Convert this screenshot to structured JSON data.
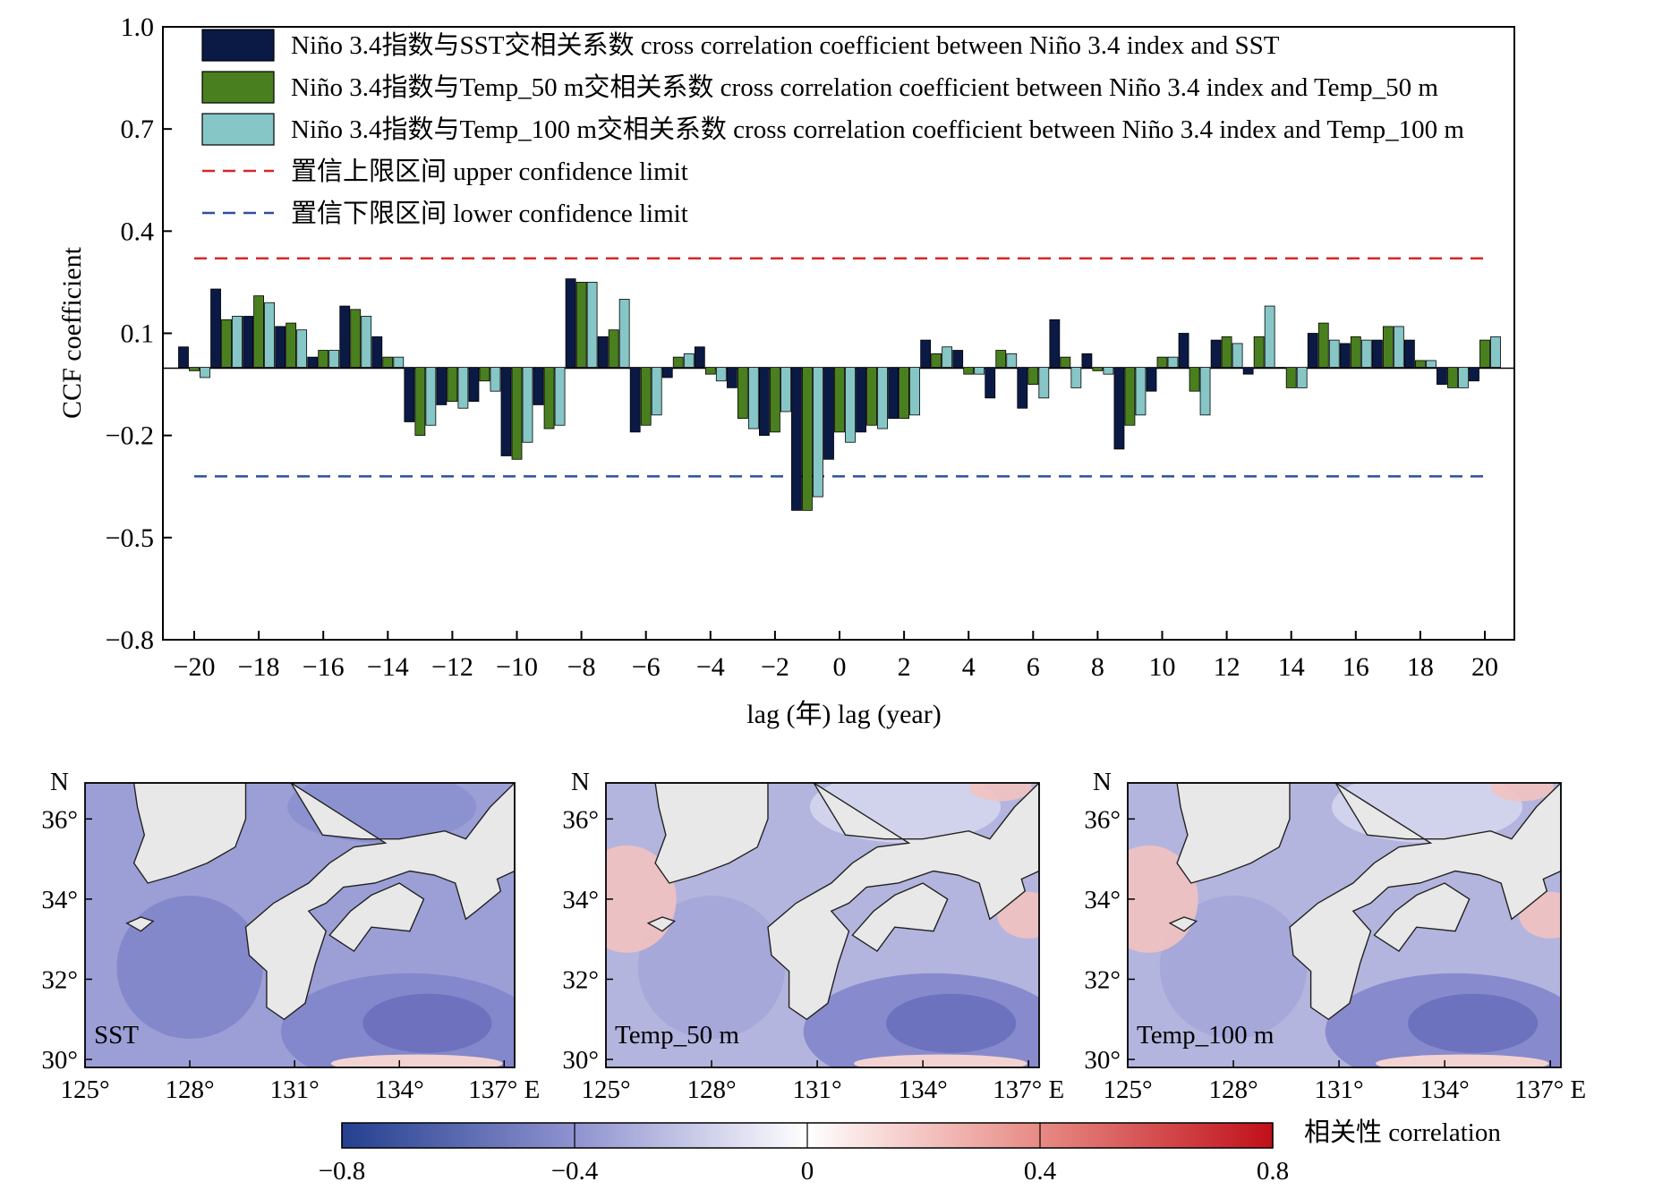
{
  "chart_data": [
    {
      "type": "bar",
      "ylabel": "CCF coefficient",
      "xlabel": "lag (年) lag (year)",
      "ylim": [
        -0.8,
        1.0
      ],
      "yticks": [
        1.0,
        0.7,
        0.4,
        0.1,
        -0.2,
        -0.5,
        -0.8
      ],
      "ytick_labels": [
        "1.0",
        "0.7",
        "0.4",
        "0.1",
        "−0.2",
        "−0.5",
        "−0.8"
      ],
      "xlim": [
        -20,
        20
      ],
      "xticks": [
        -20,
        -18,
        -16,
        -14,
        -12,
        -10,
        -8,
        -6,
        -4,
        -2,
        0,
        2,
        4,
        6,
        8,
        10,
        12,
        14,
        16,
        18,
        20
      ],
      "xtick_labels": [
        "−20",
        "−18",
        "−16",
        "−14",
        "−12",
        "−10",
        "−8",
        "−6",
        "−4",
        "−2",
        "0",
        "2",
        "4",
        "6",
        "8",
        "10",
        "12",
        "14",
        "16",
        "18",
        "20"
      ],
      "lags": [
        -20,
        -19,
        -18,
        -17,
        -16,
        -15,
        -14,
        -13,
        -12,
        -11,
        -10,
        -9,
        -8,
        -7,
        -6,
        -5,
        -4,
        -3,
        -2,
        -1,
        0,
        1,
        2,
        3,
        4,
        5,
        6,
        7,
        8,
        9,
        10,
        11,
        12,
        13,
        14,
        15,
        16,
        17,
        18,
        19,
        20
      ],
      "legend_position": "top",
      "series": [
        {
          "name": "Niño 3.4指数与SST交相关系数 cross correlation coefficient between Niño 3.4 index and SST",
          "color": "#0b1a45",
          "values": [
            0.06,
            0.23,
            0.15,
            0.12,
            0.03,
            0.18,
            0.09,
            -0.16,
            -0.11,
            -0.1,
            -0.26,
            -0.11,
            0.26,
            0.09,
            -0.19,
            -0.03,
            0.06,
            -0.06,
            -0.2,
            -0.42,
            -0.27,
            -0.19,
            -0.15,
            0.08,
            0.05,
            -0.09,
            -0.12,
            0.14,
            0.04,
            -0.24,
            -0.07,
            0.1,
            0.08,
            -0.02,
            0.0,
            0.1,
            0.07,
            0.08,
            0.08,
            -0.05,
            -0.04
          ]
        },
        {
          "name": "Niño 3.4指数与Temp_50 m交相关系数 cross correlation coefficient between Niño 3.4 index and Temp_50 m",
          "color": "#4a7f1f",
          "values": [
            -0.01,
            0.14,
            0.21,
            0.13,
            0.05,
            0.17,
            0.03,
            -0.2,
            -0.1,
            -0.04,
            -0.27,
            -0.18,
            0.25,
            0.11,
            -0.17,
            0.03,
            -0.02,
            -0.15,
            -0.19,
            -0.42,
            -0.19,
            -0.17,
            -0.15,
            0.04,
            -0.02,
            0.05,
            -0.05,
            0.03,
            -0.01,
            -0.17,
            0.03,
            -0.07,
            0.09,
            0.09,
            -0.06,
            0.13,
            0.09,
            0.12,
            0.02,
            -0.06,
            0.08
          ]
        },
        {
          "name": "Niño 3.4指数与Temp_100 m交相关系数 cross correlation coefficient between Niño 3.4 index and Temp_100 m",
          "color": "#86c6c6",
          "values": [
            -0.03,
            0.15,
            0.19,
            0.11,
            0.05,
            0.15,
            0.03,
            -0.17,
            -0.12,
            -0.07,
            -0.22,
            -0.17,
            0.25,
            0.2,
            -0.14,
            0.04,
            -0.04,
            -0.18,
            -0.13,
            -0.38,
            -0.22,
            -0.18,
            -0.14,
            0.06,
            -0.02,
            0.04,
            -0.09,
            -0.06,
            -0.02,
            -0.14,
            0.03,
            -0.14,
            0.07,
            0.18,
            -0.06,
            0.08,
            0.08,
            0.12,
            0.02,
            -0.06,
            0.09
          ]
        }
      ],
      "reference_lines": [
        {
          "name": "置信上限区间 upper confidence limit",
          "value": 0.32,
          "color": "#d62728",
          "style": "dashed"
        },
        {
          "name": "置信下限区间 lower confidence limit",
          "value": -0.32,
          "color": "#2e4f9e",
          "style": "dashed"
        }
      ]
    },
    {
      "type": "heatmap",
      "description_type": "correlation maps",
      "panels": [
        "SST",
        "Temp_50 m",
        "Temp_100 m"
      ],
      "lat_tick_labels": [
        "30°",
        "32°",
        "34°",
        "36°"
      ],
      "lat_ticks": [
        30,
        32,
        34,
        36
      ],
      "lat_axis_label": "N",
      "lon_tick_labels": [
        "125°",
        "128°",
        "131°",
        "134°",
        "137° E"
      ],
      "lon_ticks": [
        125,
        128,
        131,
        134,
        137
      ],
      "colorbar": {
        "label": "相关性  correlation",
        "range": [
          -0.8,
          0.8
        ],
        "ticks": [
          -0.8,
          -0.4,
          0,
          0.4,
          0.8
        ],
        "tick_labels": [
          "−0.8",
          "−0.4",
          "0",
          "0.4",
          "0.8"
        ],
        "colors": [
          "#24408f",
          "#8f92cf",
          "#ffffff",
          "#e88a84",
          "#c0101a"
        ]
      }
    }
  ]
}
